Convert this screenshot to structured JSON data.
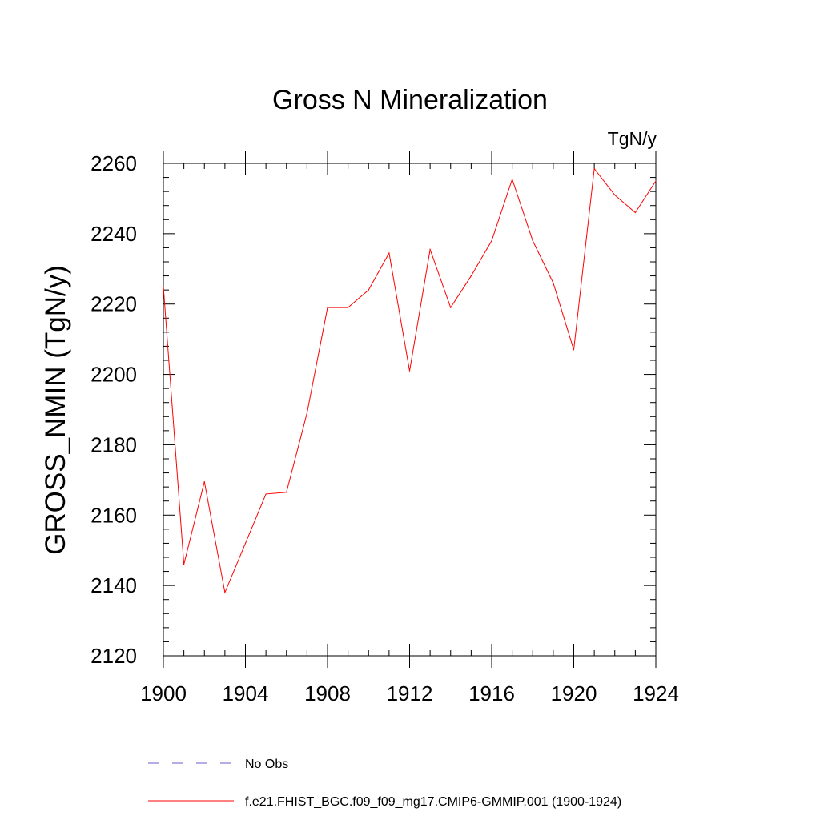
{
  "chart_data": {
    "type": "line",
    "title": "Gross N Mineralization",
    "units_label": "TgN/y",
    "xlabel": "",
    "ylabel": "GROSS_NMIN  (TgN/y)",
    "xlim": [
      1900,
      1924
    ],
    "ylim": [
      2120,
      2260
    ],
    "xticks": [
      1900,
      1904,
      1908,
      1912,
      1916,
      1920,
      1924
    ],
    "xtick_labels": [
      "1900",
      "1904",
      "1908",
      "1912",
      "1916",
      "1920",
      "1924"
    ],
    "x_minor_step": 1,
    "yticks": [
      2120,
      2140,
      2160,
      2180,
      2200,
      2220,
      2240,
      2260
    ],
    "ytick_labels": [
      "2120",
      "2140",
      "2160",
      "2180",
      "2200",
      "2220",
      "2240",
      "2260"
    ],
    "y_minor_step": 4,
    "grid": false,
    "legend_position": "bottom-left",
    "series": [
      {
        "name": "No Obs",
        "color": "#6a5acd",
        "style": "dashed",
        "x": [],
        "values": []
      },
      {
        "name": "f.e21.FHIST_BGC.f09_f09_mg17.CMIP6-GMMIP.001 (1900-1924)",
        "color": "#ff0000",
        "style": "solid",
        "x": [
          1900,
          1901,
          1902,
          1903,
          1904,
          1905,
          1906,
          1907,
          1908,
          1909,
          1910,
          1911,
          1912,
          1913,
          1914,
          1915,
          1916,
          1917,
          1918,
          1919,
          1920,
          1921,
          1922,
          1923,
          1924
        ],
        "values": [
          2225,
          2146,
          2169.5,
          2138,
          2152,
          2166,
          2166.5,
          2189,
          2219,
          2219,
          2224,
          2234.5,
          2201,
          2235.5,
          2219,
          2228,
          2238,
          2255.5,
          2238,
          2226,
          2207,
          2258.5,
          2251,
          2246,
          2255
        ]
      }
    ]
  }
}
